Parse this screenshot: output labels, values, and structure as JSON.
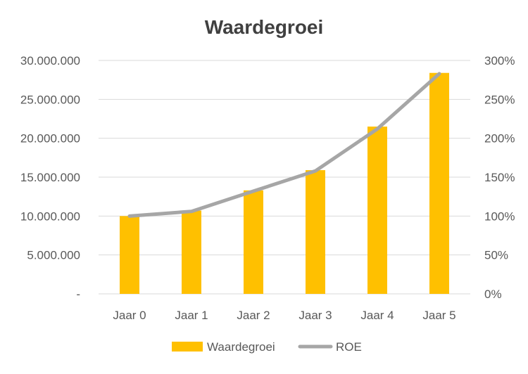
{
  "chart_data": {
    "type": "bar",
    "title": "Waardegroei",
    "categories": [
      "Jaar 0",
      "Jaar 1",
      "Jaar 2",
      "Jaar 3",
      "Jaar 4",
      "Jaar 5"
    ],
    "series": [
      {
        "name": "Waardegroei",
        "type": "bar",
        "axis": "left",
        "color": "#FFC000",
        "values": [
          10000000,
          10700000,
          13300000,
          15900000,
          21500000,
          28400000
        ]
      },
      {
        "name": "ROE",
        "type": "line",
        "axis": "right",
        "color": "#A6A6A6",
        "values": [
          1.0,
          1.06,
          1.32,
          1.58,
          2.12,
          2.83
        ]
      }
    ],
    "y_left": {
      "min": 0,
      "max": 30000000,
      "ticks": [
        0,
        5000000,
        10000000,
        15000000,
        20000000,
        25000000,
        30000000
      ],
      "tick_labels": [
        "-",
        "5.000.000",
        "10.000.000",
        "15.000.000",
        "20.000.000",
        "25.000.000",
        "30.000.000"
      ]
    },
    "y_right": {
      "min": 0,
      "max": 3,
      "ticks": [
        0,
        0.5,
        1,
        1.5,
        2,
        2.5,
        3
      ],
      "tick_labels": [
        "0%",
        "50%",
        "100%",
        "150%",
        "200%",
        "250%",
        "300%"
      ]
    },
    "grid": true,
    "legend": "bottom"
  }
}
